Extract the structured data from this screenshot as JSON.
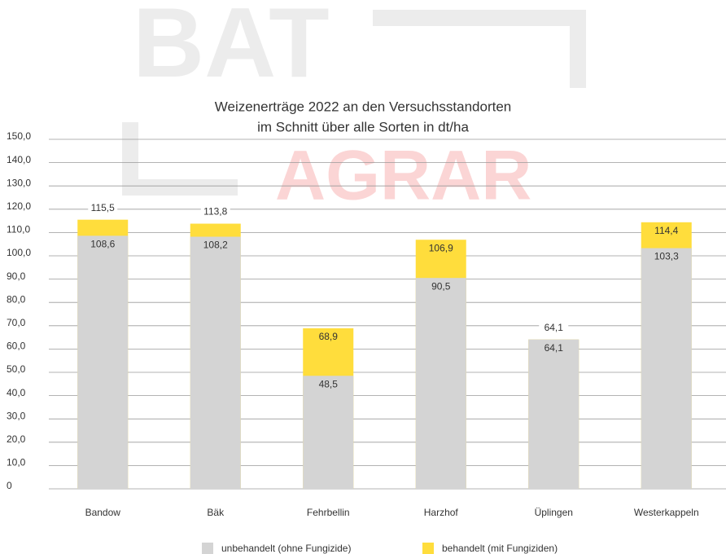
{
  "logo": {
    "top": "BAT",
    "bottom": "AGRAR"
  },
  "chart_data": {
    "type": "bar",
    "title": [
      "Weizenerträge 2022 an den Versuchsstandorten",
      "im Schnitt über alle Sorten in dt/ha"
    ],
    "categories": [
      "Bandow",
      "Bäk",
      "Fehrbellin",
      "Harzhof",
      "Üplingen",
      "Westerkappeln"
    ],
    "series": [
      {
        "name": "unbehandelt (ohne Fungizide)",
        "color": "#d4d4d4",
        "values": [
          108.6,
          108.2,
          48.5,
          90.5,
          64.1,
          103.3
        ],
        "value_labels": [
          "108,6",
          "108,2",
          "48,5",
          "90,5",
          "64,1",
          "103,3"
        ]
      },
      {
        "name": "behandelt (mit Fungiziden)",
        "color": "#ffdd3c",
        "values": [
          115.5,
          113.8,
          68.9,
          106.9,
          64.1,
          114.4
        ],
        "value_labels": [
          "115,5",
          "113,8",
          "68,9",
          "106,9",
          "64,1",
          "114,4"
        ]
      }
    ],
    "ylim": [
      0,
      150
    ],
    "yticks": [
      0,
      {
        "value": 10,
        "label": "10,0"
      },
      {
        "value": 20,
        "label": "20,0"
      },
      {
        "value": 30,
        "label": "30,0"
      },
      {
        "value": 40,
        "label": "40,0"
      },
      {
        "value": 50,
        "label": "50,0"
      },
      {
        "value": 60,
        "label": "60,0"
      },
      {
        "value": 70,
        "label": "70,0"
      },
      {
        "value": 80,
        "label": "80,0"
      },
      {
        "value": 90,
        "label": "90,0"
      },
      {
        "value": 100,
        "label": "100,0"
      },
      {
        "value": 110,
        "label": "110,0"
      },
      {
        "value": 120,
        "label": "120,0"
      },
      {
        "value": 130,
        "label": "130,0"
      },
      {
        "value": 140,
        "label": "140,0"
      },
      {
        "value": 150,
        "label": "150,0"
      }
    ],
    "grid": true,
    "overlap": true,
    "legend": "bottom"
  }
}
